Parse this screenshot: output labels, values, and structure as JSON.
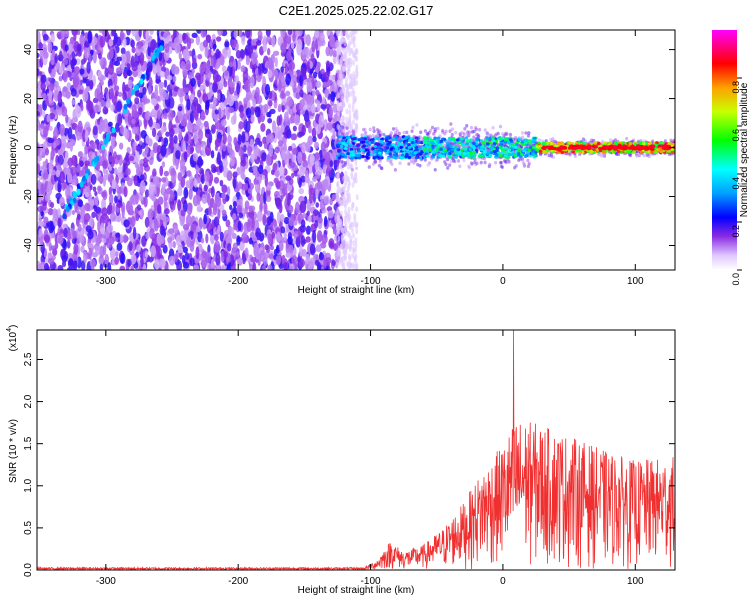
{
  "figure": {
    "title": "C2E1.2025.025.22.02.G17"
  },
  "chart_data": [
    {
      "type": "heatmap",
      "xlabel": "Height of straight line (km)",
      "ylabel": "Frequency (Hz)",
      "xlim": [
        -352,
        130
      ],
      "ylim": [
        -50,
        48
      ],
      "xticks": [
        -300,
        -200,
        -100,
        0,
        100
      ],
      "yticks": [
        -40,
        -20,
        0,
        20,
        40
      ],
      "colorbar": {
        "label": "Normalized spectral amplitude",
        "range": [
          0.0,
          1.0
        ],
        "ticks": [
          0.0,
          0.2,
          0.4,
          0.6,
          0.8
        ]
      },
      "features": [
        {
          "name": "noise-region",
          "x_range": [
            -352,
            -120
          ],
          "description": "scattered low-amplitude speckle over full frequency range"
        },
        {
          "name": "diagonal-trace",
          "from": [
            -332,
            -28
          ],
          "to": [
            -258,
            42
          ]
        },
        {
          "name": "signal-band",
          "x_range": [
            -125,
            130
          ],
          "center_hz": 0
        }
      ]
    },
    {
      "type": "line",
      "xlabel": "Height of straight line (km)",
      "ylabel": "SNR (10 * v/v)",
      "multiplier_label": "(x10",
      "multiplier_exp": "4",
      "xlim": [
        -352,
        130
      ],
      "ylim": [
        0,
        2.85
      ],
      "xticks": [
        -300,
        -200,
        -100,
        0,
        100
      ],
      "yticks": [
        0.0,
        0.5,
        1.0,
        1.5,
        2.0,
        2.5
      ],
      "color": "#f03030",
      "envelope": [
        {
          "x": -352,
          "y": 0.03
        },
        {
          "x": -105,
          "y": 0.03
        },
        {
          "x": -95,
          "y": 0.12
        },
        {
          "x": -85,
          "y": 0.35
        },
        {
          "x": -75,
          "y": 0.22
        },
        {
          "x": -60,
          "y": 0.3
        },
        {
          "x": -45,
          "y": 0.5
        },
        {
          "x": -30,
          "y": 0.8
        },
        {
          "x": -15,
          "y": 1.2
        },
        {
          "x": 0,
          "y": 1.5
        },
        {
          "x": 10,
          "y": 1.8
        },
        {
          "x": 25,
          "y": 1.75
        },
        {
          "x": 50,
          "y": 1.6
        },
        {
          "x": 80,
          "y": 1.4
        },
        {
          "x": 100,
          "y": 1.3
        },
        {
          "x": 130,
          "y": 1.35
        }
      ],
      "peak": {
        "x": 8,
        "y": 2.85
      }
    }
  ]
}
